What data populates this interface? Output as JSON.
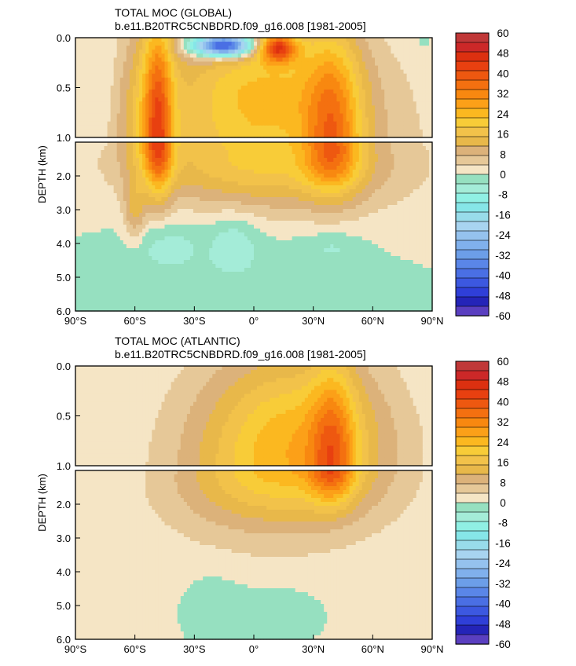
{
  "chart_data": [
    {
      "type": "contour",
      "title": "TOTAL MOC (GLOBAL)",
      "subtitle": "b.e11.B20TRC5CNBDRD.f09_g16.008 [1981-2005]",
      "ylabel": "DEPTH (km)",
      "x_tick_labels": [
        "90°S",
        "60°S",
        "30°S",
        "0°",
        "30°N",
        "60°N",
        "90°N"
      ],
      "y_tick_labels_upper": [
        "0.0",
        "0.5",
        "1.0"
      ],
      "y_tick_labels_lower": [
        "2.0",
        "3.0",
        "4.0",
        "5.0",
        "6.0"
      ],
      "xlim": [
        -90,
        90
      ],
      "upper_ylim": [
        0,
        1
      ],
      "lower_ylim": [
        1,
        6
      ],
      "features": [
        {
          "lat": -48,
          "depth": 1.2,
          "value": 26,
          "sx": 5,
          "sy": 1.1
        },
        {
          "lat": -53,
          "depth": 0.8,
          "value": 14,
          "sx": 9,
          "sy": 0.8
        },
        {
          "lat": -60,
          "depth": 3.0,
          "value": 12,
          "sx": 4,
          "sy": 0.7
        },
        {
          "lat": -15,
          "depth": 0.08,
          "value": -58,
          "sx": 11,
          "sy": 0.08
        },
        {
          "lat": 12,
          "depth": 0.1,
          "value": 36,
          "sx": 7,
          "sy": 0.1
        },
        {
          "lat": 40,
          "depth": 1.2,
          "value": 26,
          "sx": 10,
          "sy": 0.9
        },
        {
          "lat": 0,
          "depth": 1.5,
          "value": 16,
          "sx": 45,
          "sy": 0.9
        },
        {
          "lat": 5,
          "depth": 0.45,
          "value": 14,
          "sx": 32,
          "sy": 0.4
        },
        {
          "lat": 20,
          "depth": 2.0,
          "value": 6,
          "sx": 45,
          "sy": 1.2
        },
        {
          "lat": -45,
          "depth": 4.0,
          "value": -5,
          "sx": 12,
          "sy": 0.5
        },
        {
          "lat": -10,
          "depth": 3.9,
          "value": -6,
          "sx": 8,
          "sy": 0.6
        },
        {
          "lat": 40,
          "depth": 4.1,
          "value": -4,
          "sx": 10,
          "sy": 0.3
        },
        {
          "lat": -30,
          "depth": 4.6,
          "value": -2,
          "sx": 30,
          "sy": 1.0
        },
        {
          "lat": 20,
          "depth": 4.5,
          "value": -2,
          "sx": 30,
          "sy": 1.0
        },
        {
          "lat": -75,
          "depth": 0.4,
          "value": -2,
          "sx": 3,
          "sy": 0.6
        },
        {
          "lat": 85,
          "depth": 0.05,
          "value": -2,
          "sx": 4,
          "sy": 0.1
        }
      ]
    },
    {
      "type": "contour",
      "title": "TOTAL MOC (ATLANTIC)",
      "subtitle": "b.e11.B20TRC5CNBDRD.f09_g16.008 [1981-2005]",
      "ylabel": "DEPTH (km)",
      "x_tick_labels": [
        "90°S",
        "60°S",
        "30°S",
        "0°",
        "30°N",
        "60°N",
        "90°N"
      ],
      "y_tick_labels_upper": [
        "0.0",
        "0.5",
        "1.0"
      ],
      "y_tick_labels_lower": [
        "2.0",
        "3.0",
        "4.0",
        "5.0",
        "6.0"
      ],
      "xlim": [
        -90,
        90
      ],
      "upper_ylim": [
        0,
        1
      ],
      "lower_ylim": [
        1,
        6
      ],
      "features": [
        {
          "lat": 40,
          "depth": 1.0,
          "value": 22,
          "sx": 8,
          "sy": 0.7
        },
        {
          "lat": 15,
          "depth": 1.2,
          "value": 17,
          "sx": 35,
          "sy": 0.9
        },
        {
          "lat": 25,
          "depth": 0.6,
          "value": 10,
          "sx": 30,
          "sy": 0.5
        },
        {
          "lat": 10,
          "depth": 2.2,
          "value": 6,
          "sx": 45,
          "sy": 1.3
        },
        {
          "lat": -20,
          "depth": 4.6,
          "value": -2,
          "sx": 10,
          "sy": 0.6
        },
        {
          "lat": 10,
          "depth": 4.9,
          "value": -2,
          "sx": 15,
          "sy": 0.5
        },
        {
          "lat": 85,
          "depth": 0.1,
          "value": -2,
          "sx": 3,
          "sy": 0.15
        }
      ]
    }
  ],
  "colorbar": {
    "labels": [
      "60",
      "48",
      "40",
      "32",
      "24",
      "16",
      "8",
      "0",
      "-8",
      "-16",
      "-24",
      "-32",
      "-40",
      "-48",
      "-60"
    ],
    "levels": [
      -60,
      -56,
      -52,
      -48,
      -44,
      -40,
      -36,
      -32,
      -28,
      -24,
      -20,
      -16,
      -12,
      -8,
      -4,
      0,
      4,
      8,
      12,
      16,
      20,
      24,
      28,
      32,
      36,
      40,
      44,
      48,
      52,
      56,
      60
    ],
    "colors": [
      "#5a3fc0",
      "#2424b8",
      "#2f3fd8",
      "#3c58e0",
      "#4a6fe4",
      "#5a86e8",
      "#6c9ee8",
      "#80b0ec",
      "#95c2ee",
      "#a8d4f0",
      "#98dcea",
      "#86e6e8",
      "#90f0e4",
      "#a4ecd8",
      "#96e0c0",
      "#f5e5c5",
      "#e6c898",
      "#dcb27a",
      "#e8b84a",
      "#f2c24a",
      "#f8cc38",
      "#fbb820",
      "#fca018",
      "#f88810",
      "#f47010",
      "#ee5810",
      "#e84010",
      "#dc3010",
      "#cc2828",
      "#c03838"
    ]
  }
}
